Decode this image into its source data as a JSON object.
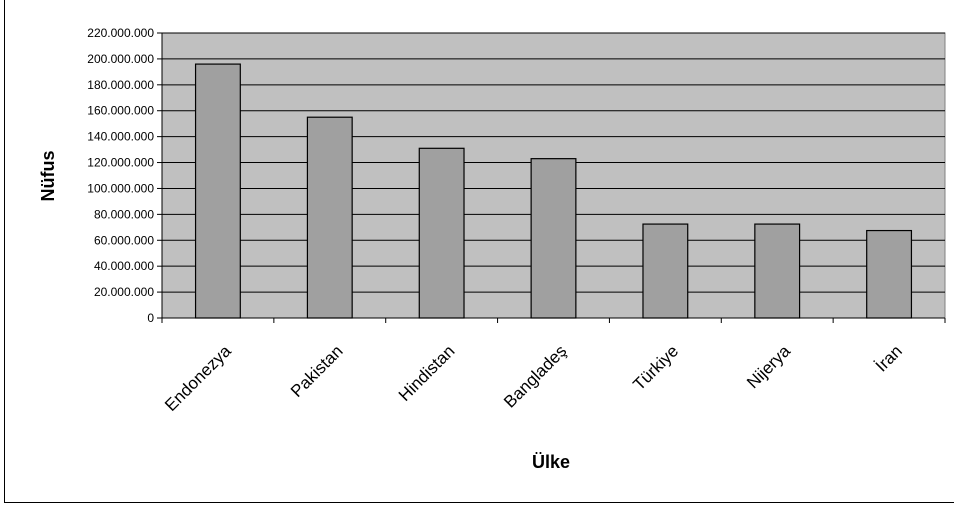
{
  "chart_data": {
    "type": "bar",
    "title": "",
    "xlabel": "Ülke",
    "ylabel": "Nüfus",
    "categories": [
      "Endonezya",
      "Pakistan",
      "Hindistan",
      "Bangladeş",
      "Türkiye",
      "Nijerya",
      "İran"
    ],
    "values": [
      196000000,
      155000000,
      131000000,
      123000000,
      72500000,
      72500000,
      67500000
    ],
    "ylim": [
      0,
      220000000
    ],
    "yticks": [
      "0",
      "20.000.000",
      "40.000.000",
      "60.000.000",
      "80.000.000",
      "100.000.000",
      "120.000.000",
      "140.000.000",
      "160.000.000",
      "180.000.000",
      "200.000.000",
      "220.000.000"
    ],
    "grid": true,
    "legend": "none",
    "colors": {
      "plot_bg": "#c0c0c0",
      "bar_fill": "#a0a0a0",
      "bar_stroke": "#000000",
      "grid": "#000000"
    }
  }
}
